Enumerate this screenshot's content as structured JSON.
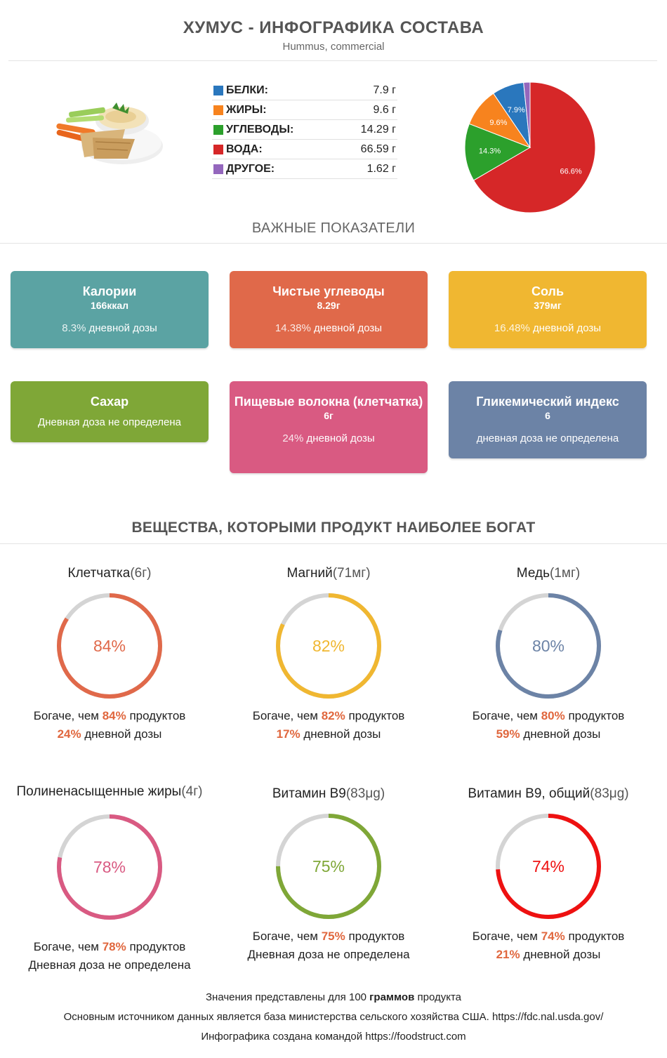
{
  "header": {
    "title": "ХУМУС - ИНФОГРАФИКА СОСТАВА",
    "subtitle": "Hummus, commercial"
  },
  "composition": [
    {
      "label": "БЕЛКИ:",
      "value": "7.9 г",
      "color": "#2a77bd"
    },
    {
      "label": "ЖИРЫ:",
      "value": "9.6 г",
      "color": "#f7831e"
    },
    {
      "label": "УГЛЕВОДЫ:",
      "value": "14.29 г",
      "color": "#2ca02c"
    },
    {
      "label": "ВОДА:",
      "value": "66.59 г",
      "color": "#d62728"
    },
    {
      "label": "ДРУГОЕ:",
      "value": "1.62 г",
      "color": "#9467bd"
    }
  ],
  "chart_data": {
    "type": "pie",
    "slices": [
      {
        "label": "7.9%",
        "value": 7.9,
        "color": "#2a77bd"
      },
      {
        "label": "9.6%",
        "value": 9.6,
        "color": "#f7831e"
      },
      {
        "label": "14.3%",
        "value": 14.3,
        "color": "#2ca02c"
      },
      {
        "label": "66.6%",
        "value": 66.6,
        "color": "#d62728"
      },
      {
        "label": "",
        "value": 1.6,
        "color": "#9467bd"
      }
    ]
  },
  "sections": {
    "key_indicators": "ВАЖНЫЕ ПОКАЗАТЕЛИ",
    "rich_in": "ВЕЩЕСТВА, КОТОРЫМИ ПРОДУКТ НАИБОЛЕЕ БОГАТ"
  },
  "cards": [
    {
      "title": "Калории",
      "value": "166ккал",
      "pct": "8.3%",
      "dv": " дневной дозы",
      "color": "#5ba3a3"
    },
    {
      "title": "Чистые углеводы",
      "value": "8.29г",
      "pct": "14.38%",
      "dv": " дневной дозы",
      "color": "#e0694a"
    },
    {
      "title": "Соль",
      "value": "379мг",
      "pct": "16.48%",
      "dv": " дневной дозы",
      "color": "#f0b731"
    },
    {
      "title": "Сахар",
      "note": "Дневная доза не определена",
      "color": "#7fa737"
    },
    {
      "title": "Пищевые волокна (клетчатка)",
      "value": "6г",
      "pct": "24%",
      "dv": " дневной дозы",
      "color": "#d95a82"
    },
    {
      "title": "Гликемический индекс",
      "value": "6",
      "note": "дневная доза не определена",
      "color": "#6c83a6"
    }
  ],
  "nutrients": [
    {
      "name": "Клетчатка",
      "amount": "(6г)",
      "pct": "84%",
      "value": 84,
      "color": "#e0694a",
      "richer_a": "Богаче, чем ",
      "richer_b": "84%",
      "richer_c": " продуктов",
      "dv_pct": "24%",
      "dv_text": " дневной дозы"
    },
    {
      "name": "Магний",
      "amount": "(71мг)",
      "pct": "82%",
      "value": 82,
      "color": "#f0b731",
      "richer_a": "Богаче, чем ",
      "richer_b": "82%",
      "richer_c": " продуктов",
      "dv_pct": "17%",
      "dv_text": " дневной дозы"
    },
    {
      "name": "Медь",
      "amount": "(1мг)",
      "pct": "80%",
      "value": 80,
      "color": "#6c83a6",
      "richer_a": "Богаче, чем ",
      "richer_b": "80%",
      "richer_c": " продуктов",
      "dv_pct": "59%",
      "dv_text": " дневной дозы"
    },
    {
      "name": "Полиненасыщенные жиры",
      "amount": "(4г)",
      "pct": "78%",
      "value": 78,
      "color": "#d95a82",
      "richer_a": "Богаче, чем ",
      "richer_b": "78%",
      "richer_c": " продуктов",
      "dv_pct": "",
      "dv_text": "Дневная доза не определена"
    },
    {
      "name": "Витамин В9",
      "amount": "(83μg)",
      "pct": "75%",
      "value": 75,
      "color": "#7fa737",
      "richer_a": "Богаче, чем ",
      "richer_b": "75%",
      "richer_c": " продуктов",
      "dv_pct": "",
      "dv_text": "Дневная доза не определена"
    },
    {
      "name": "Витамин В9, общий",
      "amount": "(83μg)",
      "pct": "74%",
      "value": 74,
      "color": "#ee1111",
      "richer_a": "Богаче, чем ",
      "richer_b": "74%",
      "richer_c": " продуктов",
      "dv_pct": "21%",
      "dv_text": " дневной дозы"
    }
  ],
  "footer": {
    "line1_a": "Значения представлены для 100 ",
    "line1_b": "граммов",
    "line1_c": " продукта",
    "line2": "Основным источником данных является база министерства сельского хозяйства США. https://fdc.nal.usda.gov/",
    "line3": "Инфографика создана командой https://foodstruct.com"
  }
}
